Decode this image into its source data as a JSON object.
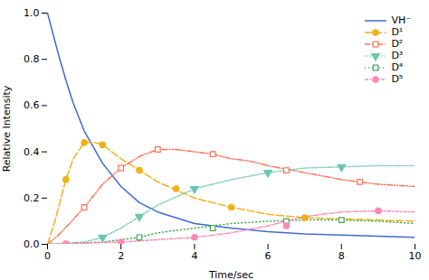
{
  "chart_data": {
    "type": "line",
    "xlabel": "Time/sec",
    "ylabel": "Relative Intensity",
    "xlim": [
      0,
      10
    ],
    "ylim": [
      0,
      1.0
    ],
    "xticks": [
      0,
      2,
      4,
      6,
      8,
      10
    ],
    "yticks": [
      {
        "value": 0.0,
        "label": "0.0"
      },
      0.2,
      0.4,
      0.6,
      0.8,
      {
        "value": 1.0,
        "label": "1.0"
      }
    ],
    "grid": false,
    "legend": "upper right",
    "series": [
      {
        "name": "VH⁻",
        "line_style": "solid",
        "x": [
          0.0,
          0.05,
          0.1,
          0.2,
          0.3,
          0.5,
          0.7,
          1.0,
          1.5,
          2.0,
          2.5,
          3.0,
          4.0,
          5.0,
          6.0,
          7.0,
          8.0,
          9.0,
          10.0
        ],
        "values": [
          1.0,
          0.97,
          0.94,
          0.88,
          0.82,
          0.71,
          0.61,
          0.49,
          0.35,
          0.25,
          0.18,
          0.14,
          0.09,
          0.07,
          0.055,
          0.045,
          0.04,
          0.035,
          0.03
        ]
      },
      {
        "name": "D¹",
        "line_style": "dashed",
        "marker": "filled-circle",
        "x": [
          0.0,
          0.2,
          0.4,
          0.5,
          0.7,
          1.0,
          1.3,
          1.5,
          2.0,
          2.5,
          3.0,
          4.0,
          5.0,
          6.0,
          7.0,
          8.0,
          9.0,
          10.0
        ],
        "values": [
          0.0,
          0.1,
          0.22,
          0.28,
          0.37,
          0.44,
          0.44,
          0.43,
          0.37,
          0.32,
          0.27,
          0.2,
          0.16,
          0.13,
          0.115,
          0.11,
          0.105,
          0.1
        ],
        "marker_x": [
          0.5,
          1.0,
          1.5,
          2.5,
          3.5,
          5.0,
          7.0
        ],
        "marker_values": [
          0.28,
          0.44,
          0.43,
          0.32,
          0.24,
          0.16,
          0.115
        ]
      },
      {
        "name": "D²",
        "line_style": "dashdotdot",
        "marker": "open-square",
        "x": [
          0.0,
          0.3,
          0.6,
          1.0,
          1.5,
          2.0,
          2.5,
          3.0,
          3.5,
          4.0,
          4.5,
          5.0,
          5.5,
          6.0,
          7.0,
          8.0,
          9.0,
          10.0
        ],
        "values": [
          0.0,
          0.04,
          0.09,
          0.16,
          0.26,
          0.33,
          0.38,
          0.41,
          0.41,
          0.4,
          0.39,
          0.37,
          0.36,
          0.34,
          0.31,
          0.28,
          0.26,
          0.25
        ],
        "marker_x": [
          1.0,
          2.0,
          3.0,
          4.5,
          6.5,
          8.5
        ],
        "marker_values": [
          0.16,
          0.33,
          0.41,
          0.39,
          0.32,
          0.27
        ]
      },
      {
        "name": "D³",
        "line_style": "dotted",
        "marker": "filled-triangle-down",
        "x": [
          0.0,
          0.5,
          1.0,
          1.5,
          2.0,
          2.5,
          3.0,
          4.0,
          5.0,
          6.0,
          7.0,
          8.0,
          9.0,
          10.0
        ],
        "values": [
          0.0,
          0.005,
          0.01,
          0.03,
          0.07,
          0.12,
          0.17,
          0.24,
          0.28,
          0.31,
          0.33,
          0.335,
          0.34,
          0.34
        ],
        "marker_x": [
          1.5,
          2.5,
          4.0,
          6.0,
          8.0
        ],
        "marker_values": [
          0.03,
          0.12,
          0.24,
          0.31,
          0.335
        ]
      },
      {
        "name": "D⁴",
        "line_style": "loosely_dotted",
        "marker": "open-square",
        "x": [
          0.0,
          0.5,
          1.0,
          1.5,
          2.0,
          2.5,
          3.0,
          4.0,
          5.0,
          6.0,
          7.0,
          8.0,
          9.0,
          10.0
        ],
        "values": [
          0.0,
          0.003,
          0.006,
          0.01,
          0.02,
          0.03,
          0.05,
          0.07,
          0.09,
          0.1,
          0.105,
          0.105,
          0.1,
          0.09
        ],
        "marker_x": [
          2.5,
          4.5,
          6.5,
          8.0
        ],
        "marker_values": [
          0.03,
          0.07,
          0.1,
          0.105
        ]
      },
      {
        "name": "D⁵",
        "line_style": "dashdot",
        "marker": "filled-circle",
        "x": [
          0.0,
          0.5,
          1.0,
          1.5,
          2.0,
          2.5,
          3.0,
          4.0,
          5.0,
          6.0,
          7.0,
          8.0,
          9.0,
          10.0
        ],
        "values": [
          0.0,
          0.003,
          0.005,
          0.008,
          0.01,
          0.015,
          0.02,
          0.03,
          0.05,
          0.08,
          0.12,
          0.14,
          0.145,
          0.14
        ],
        "marker_x": [
          0.5,
          2.0,
          4.0,
          6.5,
          9.0
        ],
        "marker_values": [
          0.003,
          0.01,
          0.03,
          0.08,
          0.145
        ]
      }
    ]
  }
}
